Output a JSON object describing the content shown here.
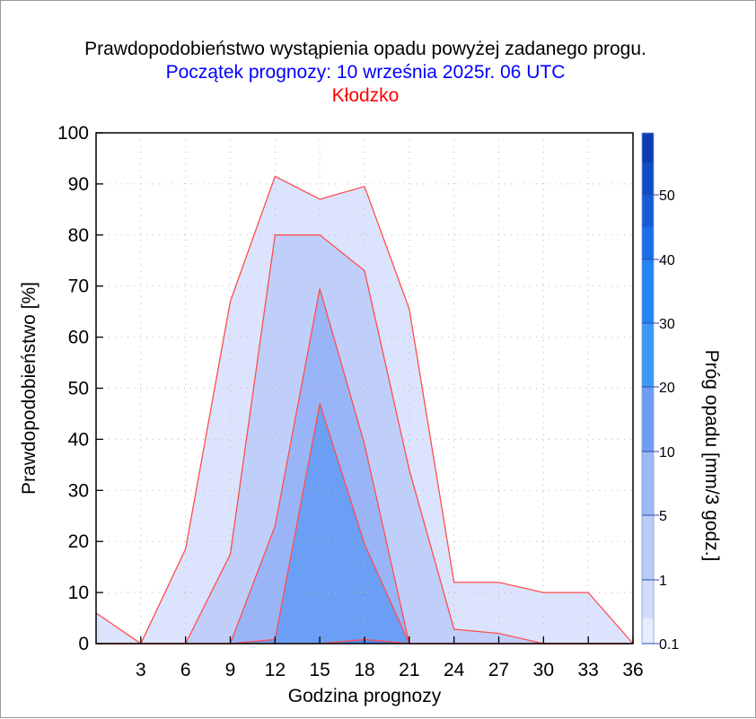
{
  "header": {
    "title": "Prawdopodobieństwo wystąpienia opadu powyżej zadanego progu.",
    "subtitle": "Początek prognozy: 10 września 2025r. 06 UTC",
    "location": "Kłodzko"
  },
  "chart_data": {
    "type": "area",
    "xlabel": "Godzina prognozy",
    "ylabel": "Prawdopodobieństwo [%]",
    "colorbar_label": "Próg opadu [mm/3 godz.]",
    "x": [
      0,
      3,
      6,
      9,
      12,
      15,
      18,
      21,
      24,
      27,
      30,
      33,
      36
    ],
    "x_ticks": [
      3,
      6,
      9,
      12,
      15,
      18,
      21,
      24,
      27,
      30,
      33,
      36
    ],
    "y_ticks": [
      0,
      10,
      20,
      30,
      40,
      50,
      60,
      70,
      80,
      90,
      100
    ],
    "xlim": [
      0,
      36
    ],
    "ylim": [
      0,
      100
    ],
    "grid": true,
    "series": [
      {
        "name": "0.1",
        "color": "#dce3fc",
        "values": [
          6,
          0,
          18.5,
          67,
          91.5,
          87,
          89.5,
          65.5,
          12,
          12,
          10,
          10,
          0
        ]
      },
      {
        "name": "1",
        "color": "#c0cffa",
        "values": [
          0,
          0,
          0,
          17.5,
          80,
          80,
          73,
          34,
          2.8,
          2,
          0,
          0,
          0
        ]
      },
      {
        "name": "5",
        "color": "#99b5f7",
        "values": [
          0,
          0,
          0,
          0,
          23,
          69.5,
          39,
          0,
          0,
          0,
          0,
          0,
          0
        ]
      },
      {
        "name": "10",
        "color": "#6b9ff5",
        "values": [
          0,
          0,
          0,
          0,
          0.8,
          47,
          19.5,
          0,
          0,
          0,
          0,
          0,
          0
        ]
      },
      {
        "name": "20",
        "color": "#4d88f0",
        "values": [
          0,
          0,
          0,
          0,
          0,
          0,
          0.8,
          0,
          0,
          0,
          0,
          0,
          0
        ]
      }
    ],
    "colorbar": {
      "levels": [
        "0.1",
        "1",
        "5",
        "10",
        "20",
        "30",
        "40",
        "50"
      ],
      "colors": [
        "#e8ecfc",
        "#d3dcfa",
        "#bccbf8",
        "#9eb8f6",
        "#6f9df3",
        "#3c9af4",
        "#1f86f2",
        "#1a6fe6",
        "#135cd6",
        "#0f4cc4",
        "#0a3db3"
      ]
    },
    "style": {
      "outline_color": "#ff4d4d",
      "grid_color": "#b8b8b8",
      "colorbar_label_color": "#000000"
    }
  }
}
